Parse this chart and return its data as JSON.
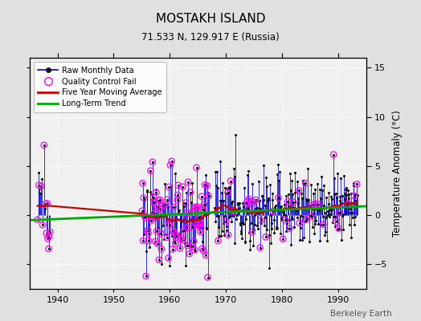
{
  "title": "MOSTAKH ISLAND",
  "subtitle": "71.533 N, 129.917 E (Russia)",
  "ylabel": "Temperature Anomaly (°C)",
  "attribution": "Berkeley Earth",
  "xlim": [
    1935,
    1995
  ],
  "ylim": [
    -7.5,
    16
  ],
  "yticks": [
    -5,
    0,
    5,
    10,
    15
  ],
  "xticks": [
    1940,
    1950,
    1960,
    1970,
    1980,
    1990
  ],
  "bg_color": "#e0e0e0",
  "plot_bg_color": "#f0f0f0",
  "raw_line_color": "#0000cc",
  "raw_dot_color": "#111111",
  "qc_fail_color": "#ff00ff",
  "moving_avg_color": "#cc0000",
  "trend_color": "#00aa00",
  "legend_items": [
    "Raw Monthly Data",
    "Quality Control Fail",
    "Five Year Moving Average",
    "Long-Term Trend"
  ],
  "seed": 12345
}
